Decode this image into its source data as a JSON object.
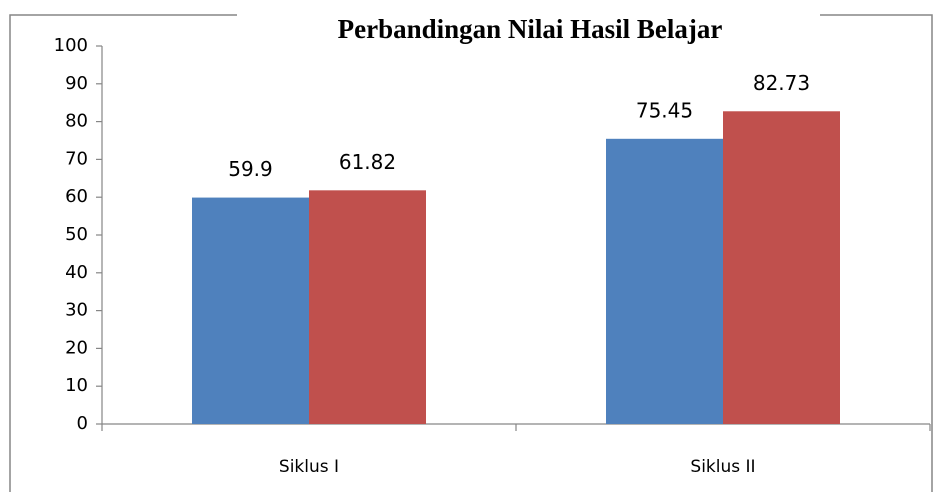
{
  "chart_data": {
    "type": "bar",
    "title": "Perbandingan Nilai Hasil Belajar",
    "categories": [
      "Siklus I",
      "Siklus II"
    ],
    "series": [
      {
        "color": "#4f81bd",
        "values": [
          59.9,
          75.45
        ]
      },
      {
        "color": "#c0504d",
        "values": [
          61.82,
          82.73
        ]
      }
    ],
    "ylim": [
      0,
      100
    ],
    "yticks": [
      0,
      10,
      20,
      30,
      40,
      50,
      60,
      70,
      80,
      90,
      100
    ],
    "grid": false
  }
}
